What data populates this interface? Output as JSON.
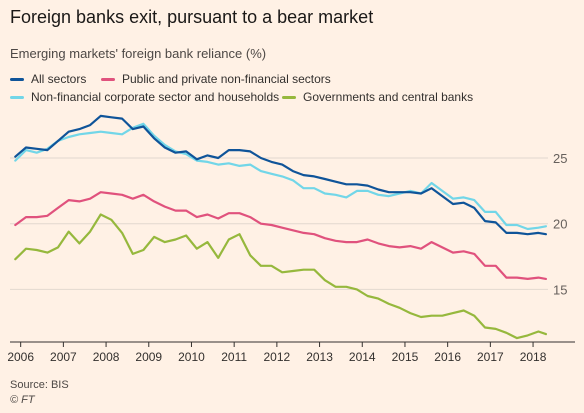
{
  "title": "Foreign banks exit, pursuant to a bear market",
  "subtitle": "Emerging markets' foreign bank reliance (%)",
  "source": "Source: BIS",
  "copyright": "© FT",
  "chart_data": {
    "type": "line",
    "title": "Foreign banks exit, pursuant to a bear market",
    "ylabel": "",
    "xlabel": "",
    "y_ticks": [
      15,
      20,
      25
    ],
    "ylim": [
      11,
      28.5
    ],
    "xlim": [
      2005.75,
      2018.35
    ],
    "x_tick_labels": [
      "2006",
      "2007",
      "2008",
      "2009",
      "2010",
      "2011",
      "2012",
      "2013",
      "2014",
      "2015",
      "2016",
      "2017",
      "2018"
    ],
    "grid": true,
    "legend_position": "top-left",
    "x": [
      2005.875,
      2006.125,
      2006.375,
      2006.625,
      2006.875,
      2007.125,
      2007.375,
      2007.625,
      2007.875,
      2008.125,
      2008.375,
      2008.625,
      2008.875,
      2009.125,
      2009.375,
      2009.625,
      2009.875,
      2010.125,
      2010.375,
      2010.625,
      2010.875,
      2011.125,
      2011.375,
      2011.625,
      2011.875,
      2012.125,
      2012.375,
      2012.625,
      2012.875,
      2013.125,
      2013.375,
      2013.625,
      2013.875,
      2014.125,
      2014.375,
      2014.625,
      2014.875,
      2015.125,
      2015.375,
      2015.625,
      2015.875,
      2016.125,
      2016.375,
      2016.625,
      2016.875,
      2017.125,
      2017.375,
      2017.625,
      2017.875,
      2018.125,
      2018.3
    ],
    "series": [
      {
        "name": "All sectors",
        "color": "#0F5499",
        "values": [
          25.1,
          25.8,
          25.7,
          25.6,
          26.3,
          27.0,
          27.2,
          27.5,
          28.2,
          28.1,
          28.0,
          27.2,
          27.4,
          26.5,
          25.8,
          25.4,
          25.5,
          24.9,
          25.2,
          25.0,
          25.6,
          25.6,
          25.5,
          25.0,
          24.7,
          24.5,
          24.0,
          23.7,
          23.6,
          23.4,
          23.2,
          23.0,
          23.0,
          22.9,
          22.6,
          22.4,
          22.4,
          22.4,
          22.3,
          22.7,
          22.1,
          21.5,
          21.6,
          21.2,
          20.2,
          20.1,
          19.3,
          19.3,
          19.2,
          19.3,
          19.2
        ]
      },
      {
        "name": "Public and private non-financial sectors",
        "color": "#E0527D",
        "values": [
          19.9,
          20.5,
          20.5,
          20.6,
          21.2,
          21.8,
          21.7,
          21.9,
          22.4,
          22.3,
          22.2,
          21.9,
          22.2,
          21.7,
          21.3,
          21.0,
          21.0,
          20.5,
          20.7,
          20.4,
          20.8,
          20.8,
          20.5,
          20.0,
          19.9,
          19.7,
          19.5,
          19.3,
          19.2,
          18.9,
          18.7,
          18.6,
          18.6,
          18.8,
          18.5,
          18.3,
          18.2,
          18.3,
          18.1,
          18.6,
          18.2,
          17.8,
          17.9,
          17.7,
          16.8,
          16.8,
          15.9,
          15.9,
          15.8,
          15.9,
          15.8
        ]
      },
      {
        "name": "Non-financial corporate sector and households",
        "color": "#72D6E8",
        "values": [
          24.8,
          25.6,
          25.4,
          25.7,
          26.3,
          26.6,
          26.8,
          26.9,
          27.0,
          26.9,
          26.8,
          27.3,
          27.6,
          26.7,
          26.0,
          25.5,
          25.3,
          24.8,
          24.7,
          24.5,
          24.6,
          24.4,
          24.5,
          24.0,
          23.8,
          23.6,
          23.3,
          22.7,
          22.7,
          22.3,
          22.2,
          22.0,
          22.5,
          22.5,
          22.2,
          22.1,
          22.3,
          22.5,
          22.3,
          23.1,
          22.5,
          21.9,
          22.0,
          21.8,
          20.9,
          20.9,
          19.9,
          19.9,
          19.6,
          19.7,
          19.8
        ]
      },
      {
        "name": "Governments and central banks",
        "color": "#96B83D",
        "values": [
          17.3,
          18.1,
          18.0,
          17.8,
          18.2,
          19.4,
          18.5,
          19.4,
          20.7,
          20.3,
          19.3,
          17.7,
          18.0,
          19.0,
          18.6,
          18.8,
          19.1,
          18.1,
          18.6,
          17.4,
          18.8,
          19.2,
          17.6,
          16.8,
          16.8,
          16.3,
          16.4,
          16.5,
          16.5,
          15.7,
          15.2,
          15.2,
          15.0,
          14.5,
          14.3,
          13.9,
          13.6,
          13.2,
          12.9,
          13.0,
          13.0,
          13.2,
          13.4,
          13.0,
          12.1,
          12.0,
          11.7,
          11.3,
          11.5,
          11.8,
          11.6
        ]
      }
    ]
  }
}
